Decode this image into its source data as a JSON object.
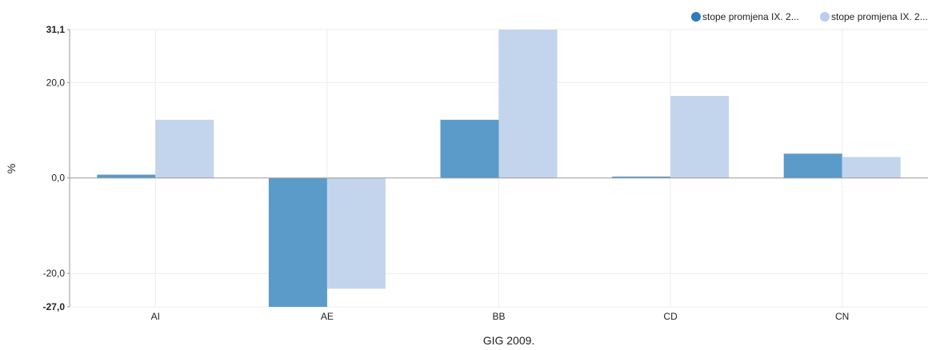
{
  "chart_data": {
    "type": "bar",
    "categories": [
      "AI",
      "AE",
      "BB",
      "CD",
      "CN"
    ],
    "series": [
      {
        "name": "stope promjena IX. 2...",
        "values": [
          0.7,
          -27.0,
          12.2,
          0.3,
          5.1
        ],
        "color": "#5b9bc9"
      },
      {
        "name": "stope promjena IX. 2...",
        "values": [
          12.2,
          -23.2,
          31.1,
          17.2,
          4.4
        ],
        "color": "#c3d5ec"
      }
    ],
    "title": "",
    "xlabel": "GIG 2009.",
    "ylabel": "%",
    "ylim": [
      -27.0,
      31.1
    ],
    "yticks": [
      {
        "value": 31.1,
        "label": "31,1",
        "bold": true
      },
      {
        "value": 20.0,
        "label": "20,0",
        "bold": false
      },
      {
        "value": 0.0,
        "label": "0,0",
        "bold": false
      },
      {
        "value": -20.0,
        "label": "-20,0",
        "bold": false
      },
      {
        "value": -27.0,
        "label": "-27,0",
        "bold": true
      }
    ],
    "legend_position": "top-right",
    "legend_marker_colors": [
      "#2f7bbd",
      "#b8cfee"
    ],
    "grid": true
  }
}
